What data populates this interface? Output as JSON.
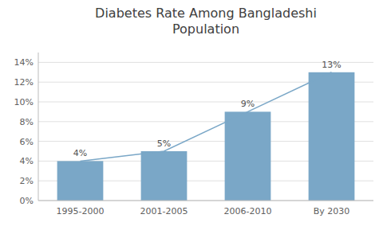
{
  "chart_data": {
    "type": "bar",
    "title": "Diabetes Rate Among Bangladeshi\nPopulation",
    "categories": [
      "1995-2000",
      "2001-2005",
      "2006-2010",
      "By 2030"
    ],
    "values": [
      4,
      5,
      9,
      13
    ],
    "value_labels": [
      "4%",
      "5%",
      "9%",
      "13%"
    ],
    "data_labels": true,
    "color": "#7aa7c7",
    "ylim": [
      0,
      15
    ],
    "yticks": [
      {
        "value": 0,
        "label": "0%"
      },
      {
        "value": 2,
        "label": "2%"
      },
      {
        "value": 4,
        "label": "4%"
      },
      {
        "value": 6,
        "label": "6%"
      },
      {
        "value": 8,
        "label": "8%"
      },
      {
        "value": 10,
        "label": "10%"
      },
      {
        "value": 12,
        "label": "12%"
      },
      {
        "value": 14,
        "label": "14%"
      }
    ],
    "grid": true
  }
}
